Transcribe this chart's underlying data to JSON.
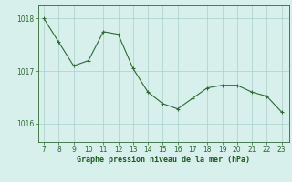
{
  "x": [
    7,
    8,
    9,
    10,
    11,
    12,
    13,
    14,
    15,
    16,
    17,
    18,
    19,
    20,
    21,
    22,
    23
  ],
  "y": [
    1018.0,
    1017.55,
    1017.1,
    1017.2,
    1017.75,
    1017.7,
    1017.05,
    1016.6,
    1016.38,
    1016.28,
    1016.48,
    1016.68,
    1016.73,
    1016.73,
    1016.6,
    1016.52,
    1016.22
  ],
  "line_color": "#2d6a2d",
  "marker": "P",
  "marker_size": 2.5,
  "bg_color": "#d8f0ec",
  "grid_color_major": "#aacfca",
  "grid_color_minor": "#c8e8e4",
  "axis_label_color": "#1a5c1a",
  "tick_color": "#2d6a2d",
  "xlabel": "Graphe pression niveau de la mer (hPa)",
  "ylim": [
    1015.65,
    1018.25
  ],
  "xlim": [
    6.6,
    23.5
  ],
  "yticks": [
    1016,
    1017,
    1018
  ],
  "xticks": [
    7,
    8,
    9,
    10,
    11,
    12,
    13,
    14,
    15,
    16,
    17,
    18,
    19,
    20,
    21,
    22,
    23
  ],
  "xlabel_fontsize": 6.0,
  "tick_fontsize": 5.5
}
